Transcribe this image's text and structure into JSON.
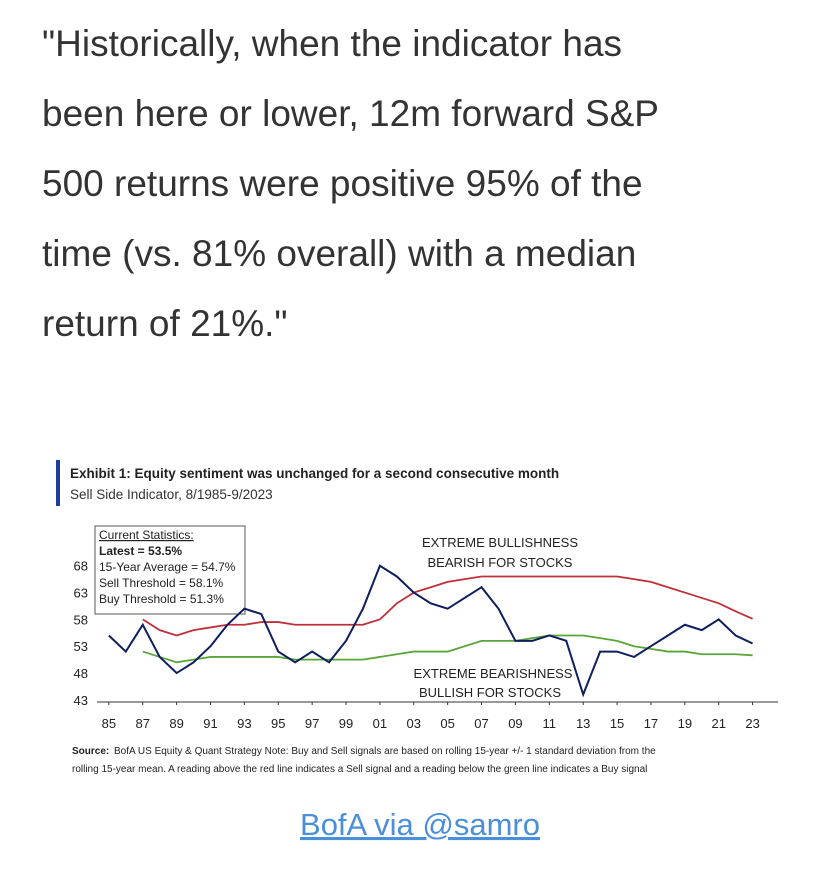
{
  "quote": {
    "lines": [
      "\"Historically, when the indicator has",
      "been here or lower, 12m forward S&P",
      "500 returns were positive 95% of the",
      "time (vs. 81% overall) with a median",
      "return of 21%.\""
    ]
  },
  "chart_data": {
    "type": "line",
    "title": "Exhibit 1: Equity sentiment was unchanged for a second consecutive month",
    "subtitle": "Sell Side Indicator, 8/1985-9/2023",
    "stats_box": [
      "Current Statistics:",
      "Latest = 53.5%",
      "15-Year Average = 54.7%",
      "Sell Threshold = 58.1%",
      "Buy Threshold = 51.3%"
    ],
    "annotations": [
      "EXTREME BULLISHNESS",
      "BEARISH FOR STOCKS",
      "EXTREME BEARISHNESS",
      "BULLISH FOR STOCKS"
    ],
    "source_label": "Source:",
    "source_lines": [
      "BofA US Equity & Quant Strategy Note: Buy and Sell signals are based on rolling 15-year +/- 1 standard deviation from the",
      "rolling 15-year mean. A reading above the red line indicates a Sell signal and a reading below the green line indicates a Buy signal"
    ],
    "x": [
      1985,
      1986,
      1987,
      1988,
      1989,
      1990,
      1991,
      1992,
      1993,
      1994,
      1995,
      1996,
      1997,
      1998,
      1999,
      2000,
      2001,
      2002,
      2003,
      2004,
      2005,
      2006,
      2007,
      2008,
      2009,
      2010,
      2011,
      2012,
      2013,
      2014,
      2015,
      2016,
      2017,
      2018,
      2019,
      2020,
      2021,
      2022,
      2023
    ],
    "series": [
      {
        "color": "#0d1f5c",
        "values": [
          55,
          52,
          57,
          51,
          48,
          50,
          53,
          57,
          60,
          59,
          52,
          50,
          52,
          50,
          54,
          60,
          68,
          66,
          63,
          61,
          60,
          62,
          64,
          60,
          54,
          54,
          55,
          54,
          44,
          52,
          52,
          51,
          53,
          55,
          57,
          56,
          58,
          55,
          53.5
        ]
      },
      {
        "color": "#c0303a",
        "values": [
          null,
          null,
          58,
          56,
          55,
          56,
          56.5,
          57,
          57,
          57.5,
          57.5,
          57,
          57,
          57,
          57,
          57,
          58,
          61,
          63,
          64,
          65,
          65.5,
          66,
          66,
          66,
          66,
          66,
          66,
          66,
          66,
          66,
          65.5,
          65,
          64,
          63,
          62,
          61,
          59.5,
          58.1
        ]
      },
      {
        "color": "#5aa53a",
        "values": [
          null,
          null,
          52,
          51,
          50,
          50.5,
          51,
          51,
          51,
          51,
          51,
          50.5,
          50.5,
          50.5,
          50.5,
          50.5,
          51,
          51.5,
          52,
          52,
          52,
          53,
          54,
          54,
          54,
          54.5,
          55,
          55,
          55,
          54.5,
          54,
          53,
          52.5,
          52,
          52,
          51.5,
          51.5,
          51.5,
          51.3
        ]
      }
    ],
    "xlim": [
      1984.3,
      2024.5
    ],
    "ylim": [
      42.6,
      72.8
    ],
    "yticks": [
      43,
      48,
      53,
      58,
      63,
      68
    ],
    "xticks": [
      {
        "value": 1985,
        "label": "85"
      },
      {
        "value": 1987,
        "label": "87"
      },
      {
        "value": 1989,
        "label": "89"
      },
      {
        "value": 1991,
        "label": "91"
      },
      {
        "value": 1993,
        "label": "93"
      },
      {
        "value": 1995,
        "label": "95"
      },
      {
        "value": 1997,
        "label": "97"
      },
      {
        "value": 1999,
        "label": "99"
      },
      {
        "value": 2001,
        "label": "01"
      },
      {
        "value": 2003,
        "label": "03"
      },
      {
        "value": 2005,
        "label": "05"
      },
      {
        "value": 2007,
        "label": "07"
      },
      {
        "value": 2009,
        "label": "09"
      },
      {
        "value": 2011,
        "label": "11"
      },
      {
        "value": 2013,
        "label": "13"
      },
      {
        "value": 2015,
        "label": "15"
      },
      {
        "value": 2017,
        "label": "17"
      },
      {
        "value": 2019,
        "label": "19"
      },
      {
        "value": 2021,
        "label": "21"
      },
      {
        "value": 2023,
        "label": "23"
      }
    ]
  },
  "link": "BofA via @samro"
}
